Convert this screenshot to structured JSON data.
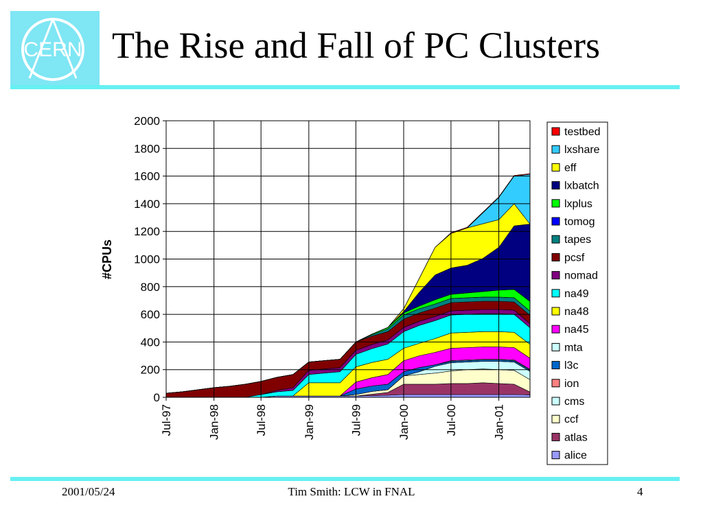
{
  "slide": {
    "title": "The Rise and Fall of PC Clusters",
    "logo_text": "CERN",
    "footer_left": "2001/05/24",
    "footer_center": "Tim Smith:  LCW in FNAL",
    "footer_right": "4",
    "colors": {
      "accent_rule": "#66f0f2",
      "logo_background": "#7fe6f4",
      "logo_foreground": "#ffffff"
    }
  },
  "chart_data": {
    "type": "area",
    "stacked": true,
    "ylabel": "#CPUs",
    "ylim": [
      0,
      2000
    ],
    "yticks": [
      0,
      200,
      400,
      600,
      800,
      1000,
      1200,
      1400,
      1600,
      1800,
      2000
    ],
    "xticks": [
      "Jul-97",
      "Jan-98",
      "Jul-98",
      "Jan-99",
      "Jul-99",
      "Jan-00",
      "Jul-00",
      "Jan-01"
    ],
    "x": [
      "1997-07",
      "1997-09",
      "1997-11",
      "1998-01",
      "1998-03",
      "1998-05",
      "1998-07",
      "1998-09",
      "1998-11",
      "1999-01",
      "1999-03",
      "1999-05",
      "1999-07",
      "1999-09",
      "1999-11",
      "2000-01",
      "2000-03",
      "2000-05",
      "2000-07",
      "2000-09",
      "2000-11",
      "2001-01",
      "2001-03",
      "2001-05"
    ],
    "grid": true,
    "legend_position": "right",
    "series": [
      {
        "name": "alice",
        "color": "#9999ff",
        "values": [
          0,
          0,
          0,
          0,
          0,
          0,
          0,
          10,
          10,
          10,
          10,
          10,
          10,
          12,
          15,
          20,
          20,
          20,
          20,
          20,
          20,
          20,
          20,
          18
        ]
      },
      {
        "name": "atlas",
        "color": "#993366",
        "values": [
          0,
          0,
          0,
          0,
          0,
          0,
          0,
          0,
          0,
          0,
          0,
          0,
          0,
          10,
          20,
          75,
          75,
          75,
          80,
          80,
          85,
          80,
          75,
          20
        ]
      },
      {
        "name": "ccf",
        "color": "#ffffcc",
        "values": [
          0,
          0,
          0,
          0,
          0,
          0,
          0,
          0,
          0,
          0,
          0,
          0,
          10,
          20,
          20,
          60,
          70,
          80,
          90,
          100,
          100,
          100,
          100,
          90
        ]
      },
      {
        "name": "cms",
        "color": "#ccffff",
        "values": [
          0,
          0,
          0,
          0,
          0,
          0,
          0,
          0,
          0,
          0,
          0,
          0,
          0,
          0,
          0,
          0,
          20,
          50,
          60,
          55,
          55,
          60,
          60,
          60
        ]
      },
      {
        "name": "ion",
        "color": "#ff8080",
        "values": [
          0,
          0,
          0,
          0,
          0,
          0,
          0,
          0,
          0,
          0,
          0,
          0,
          0,
          0,
          0,
          0,
          0,
          0,
          0,
          0,
          0,
          0,
          0,
          0
        ]
      },
      {
        "name": "l3c",
        "color": "#0066cc",
        "values": [
          0,
          0,
          0,
          0,
          0,
          0,
          0,
          0,
          0,
          0,
          0,
          0,
          40,
          40,
          40,
          30,
          30,
          10,
          10,
          10,
          10,
          10,
          10,
          10
        ]
      },
      {
        "name": "mta",
        "color": "#ccffff",
        "values": [
          0,
          0,
          0,
          0,
          0,
          0,
          0,
          0,
          0,
          0,
          0,
          0,
          0,
          0,
          0,
          0,
          0,
          0,
          5,
          5,
          5,
          5,
          5,
          5
        ]
      },
      {
        "name": "na45",
        "color": "#ff00ff",
        "values": [
          0,
          0,
          0,
          0,
          0,
          0,
          0,
          0,
          0,
          0,
          0,
          0,
          50,
          60,
          70,
          80,
          85,
          90,
          90,
          90,
          90,
          90,
          90,
          80
        ]
      },
      {
        "name": "na48",
        "color": "#ffff00",
        "values": [
          0,
          0,
          0,
          0,
          0,
          0,
          0,
          0,
          0,
          95,
          95,
          95,
          110,
          110,
          110,
          90,
          90,
          100,
          110,
          110,
          110,
          110,
          110,
          100
        ]
      },
      {
        "name": "na49",
        "color": "#00ffff",
        "values": [
          0,
          0,
          0,
          0,
          0,
          0,
          20,
          30,
          40,
          60,
          70,
          80,
          90,
          100,
          110,
          120,
          130,
          130,
          130,
          130,
          130,
          130,
          130,
          120
        ]
      },
      {
        "name": "nomad",
        "color": "#800080",
        "values": [
          0,
          0,
          0,
          0,
          0,
          0,
          0,
          10,
          20,
          30,
          30,
          30,
          30,
          30,
          30,
          30,
          30,
          30,
          30,
          30,
          30,
          30,
          30,
          30
        ]
      },
      {
        "name": "pcsf",
        "color": "#800000",
        "values": [
          30,
          40,
          55,
          70,
          80,
          95,
          95,
          95,
          95,
          60,
          60,
          60,
          60,
          60,
          60,
          60,
          60,
          60,
          60,
          60,
          60,
          60,
          60,
          60
        ]
      },
      {
        "name": "tapes",
        "color": "#008080",
        "values": [
          0,
          0,
          0,
          0,
          0,
          0,
          0,
          0,
          0,
          0,
          0,
          0,
          0,
          10,
          20,
          30,
          30,
          30,
          30,
          30,
          30,
          30,
          30,
          30
        ]
      },
      {
        "name": "tomog",
        "color": "#0000ff",
        "values": [
          0,
          0,
          0,
          0,
          0,
          0,
          0,
          0,
          0,
          0,
          0,
          0,
          0,
          0,
          0,
          0,
          0,
          0,
          0,
          0,
          0,
          0,
          0,
          0
        ]
      },
      {
        "name": "lxplus",
        "color": "#00ff00",
        "values": [
          0,
          0,
          0,
          0,
          0,
          0,
          0,
          0,
          0,
          0,
          0,
          0,
          0,
          5,
          10,
          15,
          20,
          30,
          30,
          35,
          40,
          50,
          60,
          70
        ]
      },
      {
        "name": "lxbatch",
        "color": "#000080",
        "values": [
          0,
          0,
          0,
          0,
          0,
          0,
          0,
          0,
          0,
          0,
          0,
          0,
          0,
          0,
          0,
          10,
          100,
          180,
          190,
          200,
          240,
          310,
          460,
          560
        ]
      },
      {
        "name": "eff",
        "color": "#ffff00",
        "values": [
          0,
          0,
          0,
          0,
          0,
          0,
          0,
          0,
          0,
          0,
          0,
          0,
          0,
          0,
          0,
          20,
          100,
          200,
          250,
          270,
          250,
          200,
          160,
          0
        ]
      },
      {
        "name": "lxshare",
        "color": "#33ccff",
        "values": [
          0,
          0,
          0,
          0,
          0,
          0,
          0,
          0,
          0,
          0,
          0,
          0,
          0,
          0,
          0,
          0,
          0,
          0,
          0,
          0,
          80,
          160,
          200,
          360
        ]
      },
      {
        "name": "testbed",
        "color": "#ff0000",
        "values": [
          0,
          0,
          0,
          0,
          0,
          0,
          0,
          0,
          0,
          0,
          0,
          0,
          0,
          0,
          0,
          0,
          0,
          0,
          5,
          5,
          5,
          5,
          5,
          5
        ]
      }
    ]
  }
}
